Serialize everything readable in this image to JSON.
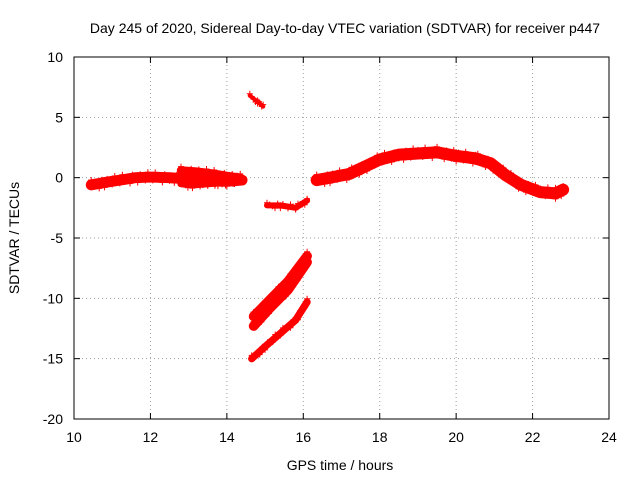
{
  "chart_data": {
    "type": "scatter",
    "title": "Day 245 of 2020, Sidereal Day-to-day VTEC variation (SDTVAR) for receiver p447",
    "xlabel": "GPS time / hours",
    "ylabel": "SDTVAR / TECUs",
    "xlim": [
      10,
      24
    ],
    "ylim": [
      -20,
      10
    ],
    "xticks": [
      10,
      12,
      14,
      16,
      18,
      20,
      22,
      24
    ],
    "yticks": [
      10,
      5,
      0,
      -5,
      -10,
      -15,
      -20
    ],
    "grid": true,
    "legend": "none",
    "series_color": "#ff0000",
    "series": [
      {
        "name": "track-1",
        "band": 0.9,
        "points": [
          [
            10.45,
            -0.6
          ],
          [
            10.8,
            -0.4
          ],
          [
            11.2,
            -0.2
          ],
          [
            11.6,
            0.0
          ],
          [
            12.0,
            0.05
          ],
          [
            12.5,
            0.0
          ],
          [
            13.0,
            -0.1
          ],
          [
            13.5,
            -0.25
          ],
          [
            14.0,
            -0.3
          ],
          [
            14.4,
            -0.2
          ]
        ]
      },
      {
        "name": "track-2",
        "band": 0.7,
        "points": [
          [
            12.8,
            0.6
          ],
          [
            13.2,
            0.5
          ],
          [
            13.6,
            0.35
          ],
          [
            14.0,
            0.15
          ],
          [
            14.35,
            0.0
          ]
        ]
      },
      {
        "name": "track-3",
        "band": 0.6,
        "points": [
          [
            12.8,
            -0.5
          ],
          [
            13.1,
            -0.6
          ],
          [
            13.5,
            -0.5
          ],
          [
            13.9,
            -0.4
          ],
          [
            14.3,
            -0.3
          ]
        ]
      },
      {
        "name": "track-4",
        "band": 0.35,
        "points": [
          [
            14.6,
            6.8
          ],
          [
            14.8,
            6.3
          ],
          [
            14.95,
            5.9
          ]
        ]
      },
      {
        "name": "track-5",
        "band": 0.5,
        "points": [
          [
            15.05,
            -2.3
          ],
          [
            15.4,
            -2.3
          ],
          [
            15.8,
            -2.5
          ],
          [
            16.1,
            -1.9
          ]
        ]
      },
      {
        "name": "track-6",
        "band": 0.8,
        "points": [
          [
            14.7,
            -11.5
          ],
          [
            15.1,
            -10.2
          ],
          [
            15.6,
            -8.6
          ],
          [
            16.1,
            -6.5
          ]
        ]
      },
      {
        "name": "track-7",
        "band": 0.8,
        "points": [
          [
            14.7,
            -12.3
          ],
          [
            15.1,
            -10.9
          ],
          [
            15.6,
            -9.3
          ],
          [
            16.1,
            -7.0
          ]
        ]
      },
      {
        "name": "track-8",
        "band": 0.6,
        "points": [
          [
            14.65,
            -15.0
          ],
          [
            15.0,
            -14.0
          ],
          [
            15.4,
            -12.9
          ],
          [
            15.8,
            -11.8
          ],
          [
            16.1,
            -10.3
          ]
        ]
      },
      {
        "name": "track-9",
        "band": 1.0,
        "points": [
          [
            16.35,
            -0.2
          ],
          [
            16.7,
            0.0
          ],
          [
            17.2,
            0.3
          ],
          [
            17.6,
            0.9
          ],
          [
            18.0,
            1.5
          ],
          [
            18.5,
            1.9
          ],
          [
            19.0,
            2.0
          ],
          [
            19.5,
            2.1
          ],
          [
            20.0,
            1.8
          ],
          [
            20.5,
            1.6
          ],
          [
            20.9,
            1.2
          ],
          [
            21.3,
            0.2
          ],
          [
            21.7,
            -0.6
          ],
          [
            22.2,
            -1.2
          ],
          [
            22.6,
            -1.3
          ],
          [
            22.8,
            -1.0
          ]
        ]
      }
    ]
  }
}
